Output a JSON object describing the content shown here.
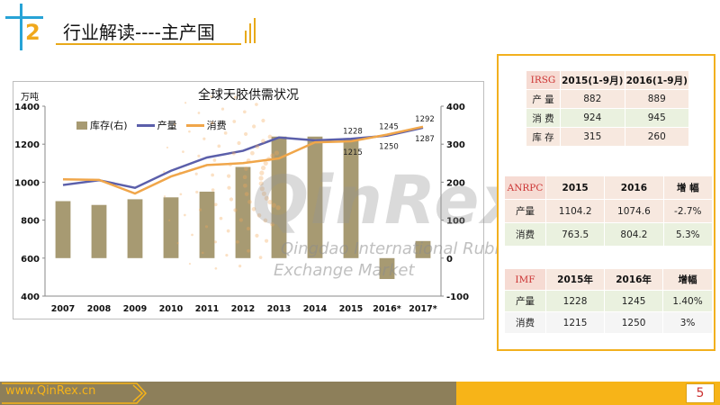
{
  "header": {
    "section_number": "2",
    "title": "行业解读----主产国"
  },
  "chart_data": {
    "type": "bar",
    "title": "全球天胶供需状况",
    "y_unit": "万吨",
    "categories": [
      "2007",
      "2008",
      "2009",
      "2010",
      "2011",
      "2012",
      "2013",
      "2014",
      "2015",
      "2016*",
      "2017*"
    ],
    "y_left_lim": [
      400,
      1400
    ],
    "y_left_ticks": [
      "400",
      "600",
      "800",
      "1000",
      "1200",
      "1400"
    ],
    "y_right_lim": [
      -100,
      400
    ],
    "y_right_ticks": [
      "-100",
      "0",
      "100",
      "200",
      "300",
      "400"
    ],
    "legend": [
      "库存(右)",
      "产量",
      "消费"
    ],
    "series": [
      {
        "name": "库存(右)",
        "type": "bar",
        "axis": "right",
        "color": "#a79a72",
        "values": [
          150,
          140,
          155,
          160,
          175,
          240,
          320,
          320,
          315,
          -55,
          45
        ]
      },
      {
        "name": "产量",
        "type": "line",
        "axis": "left",
        "color": "#5b5faa",
        "values": [
          985,
          1010,
          970,
          1060,
          1130,
          1165,
          1235,
          1220,
          1228,
          1245,
          1287
        ]
      },
      {
        "name": "消费",
        "type": "line",
        "axis": "left",
        "color": "#f0a64a",
        "values": [
          1015,
          1012,
          940,
          1030,
          1090,
          1100,
          1125,
          1210,
          1215,
          1250,
          1292
        ]
      }
    ],
    "annotations": [
      {
        "category": "2015",
        "upper": "1228",
        "lower": "1215"
      },
      {
        "category": "2016*",
        "upper": "1245",
        "lower": "1250"
      },
      {
        "category": "2017*",
        "upper": "1292",
        "lower": "1287"
      }
    ]
  },
  "watermark": {
    "brand": "QinRex",
    "line1": "Qingdao International Rubber",
    "line2": "Exchange Market"
  },
  "tables": {
    "irsg": {
      "label": "IRSG",
      "cols": [
        "2015(1-9月)",
        "2016(1-9月)"
      ],
      "rows": [
        {
          "name": "产 量",
          "values": [
            "882",
            "889"
          ]
        },
        {
          "name": "消 费",
          "values": [
            "924",
            "945"
          ]
        },
        {
          "name": "库 存",
          "values": [
            "315",
            "260"
          ]
        }
      ]
    },
    "anrpc": {
      "label": "ANRPC",
      "cols": [
        "2015",
        "2016",
        "增 幅"
      ],
      "rows": [
        {
          "name": "产量",
          "values": [
            "1104.2",
            "1074.6",
            "-2.7%"
          ]
        },
        {
          "name": "消费",
          "values": [
            "763.5",
            "804.2",
            "5.3%"
          ]
        }
      ]
    },
    "imf": {
      "label": "IMF",
      "cols": [
        "2015年",
        "2016年",
        "增幅"
      ],
      "rows": [
        {
          "name": "产量",
          "values": [
            "1228",
            "1245",
            "1.40%"
          ]
        },
        {
          "name": "消费",
          "values": [
            "1215",
            "1250",
            "3%"
          ]
        }
      ]
    }
  },
  "footer": {
    "url": "www.QinRex.cn",
    "page": "5"
  }
}
